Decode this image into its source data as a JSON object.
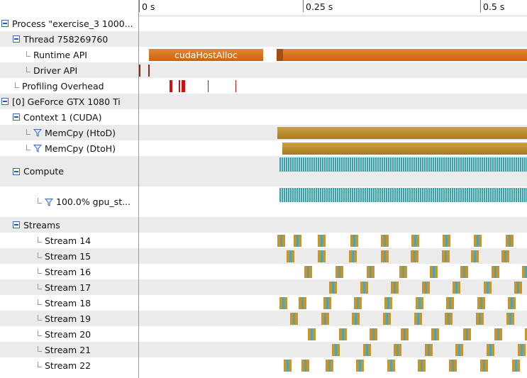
{
  "ruler": {
    "ticks": [
      "0 s",
      "0.25 s",
      "0.5 s"
    ]
  },
  "rows": [
    {
      "label": "Process \"exercise_3 1000...",
      "control": "collapse"
    },
    {
      "label": "Thread 758269760",
      "control": "collapse"
    },
    {
      "label": "Runtime API",
      "control": "leaf"
    },
    {
      "label": "Driver API",
      "control": "leaf"
    },
    {
      "label": "Profiling Overhead",
      "control": "leaf"
    },
    {
      "label": "[0] GeForce GTX 1080 Ti",
      "control": "collapse"
    },
    {
      "label": "Context 1 (CUDA)",
      "control": "collapse"
    },
    {
      "label": "MemCpy (HtoD)",
      "control": "leaf-filter"
    },
    {
      "label": "MemCpy (DtoH)",
      "control": "leaf-filter"
    },
    {
      "label": "Compute",
      "control": "collapse"
    },
    {
      "label": "100.0% gpu_st...",
      "control": "leaf-filter"
    },
    {
      "label": "Streams",
      "control": "collapse"
    },
    {
      "label": "Stream 14",
      "control": "leaf"
    },
    {
      "label": "Stream 15",
      "control": "leaf"
    },
    {
      "label": "Stream 16",
      "control": "leaf"
    },
    {
      "label": "Stream 17",
      "control": "leaf"
    },
    {
      "label": "Stream 18",
      "control": "leaf"
    },
    {
      "label": "Stream 19",
      "control": "leaf"
    },
    {
      "label": "Stream 20",
      "control": "leaf"
    },
    {
      "label": "Stream 21",
      "control": "leaf"
    },
    {
      "label": "Stream 22",
      "control": "leaf"
    }
  ],
  "timeline": {
    "runtime_api_label": "cudaHostAlloc"
  },
  "colors": {
    "api": "#d97320",
    "memcpy": "#b8892a",
    "kernel": "#3e9fa6",
    "overhead": "#d01010",
    "driver": "#8b2a10",
    "collapse_icon": "#2a57b0"
  }
}
